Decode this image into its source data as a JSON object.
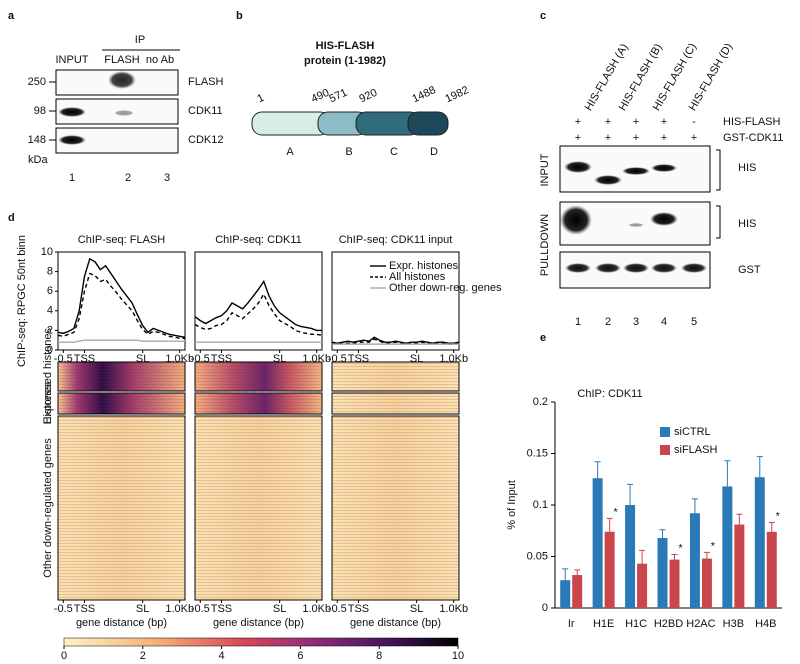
{
  "panels": {
    "a": {
      "label": "a",
      "ip_label": "IP",
      "columns": [
        "INPUT",
        "FLASH",
        "no Ab"
      ],
      "rows": [
        {
          "label": "FLASH",
          "marker": 250
        },
        {
          "label": "CDK11",
          "marker": 98
        },
        {
          "label": "CDK12",
          "marker": 148
        }
      ],
      "unit": "kDa",
      "lanes": [
        1,
        2,
        3
      ]
    },
    "b": {
      "label": "b",
      "title": "HIS-FLASH",
      "subtitle": "protein (1-1982)",
      "positions": [
        1,
        490,
        571,
        920,
        1488,
        1982
      ],
      "domains": [
        "A",
        "B",
        "C",
        "D"
      ]
    },
    "c": {
      "label": "c",
      "columns": [
        "HIS-FLASH (A)",
        "HIS-FLASH (B)",
        "HIS-FLASH (C)",
        "HIS-FLASH (D)"
      ],
      "rows": [
        {
          "label": "HIS-FLASH",
          "signs": [
            "+",
            "+",
            "+",
            "+",
            "-"
          ]
        },
        {
          "label": "GST-CDK11",
          "signs": [
            "+",
            "+",
            "+",
            "+",
            "+"
          ]
        }
      ],
      "sections": [
        "INPUT",
        "PULLDOWN"
      ],
      "blots": [
        "HIS",
        "HIS",
        "GST"
      ],
      "lanes": [
        1,
        2,
        3,
        4,
        5
      ]
    },
    "d": {
      "label": "d",
      "heatmap": {
        "row_labels": [
          "Expressed histones",
          "Histones",
          "Other down-regulated genes"
        ],
        "x_label": "gene distance (bp)"
      },
      "colorbar": {
        "lim": [
          0,
          10
        ],
        "ticks": [
          0,
          2,
          4,
          6,
          8,
          10
        ]
      }
    },
    "e": {
      "label": "e"
    }
  },
  "chart_data": [
    {
      "type": "line",
      "title": "ChIP-seq: FLASH",
      "y_label": "ChIP-seq: RPGC 50nt binn",
      "x": [
        0,
        1,
        2,
        3,
        4,
        5,
        6,
        7,
        8,
        9,
        10,
        11,
        12,
        13,
        14,
        15,
        16,
        17,
        18,
        19,
        20,
        21,
        22,
        23,
        24
      ],
      "xlim": [
        0,
        24
      ],
      "xticks": [
        {
          "value": 1,
          "label": "-0.5"
        },
        {
          "value": 5,
          "label": "TSS"
        },
        {
          "value": 16,
          "label": "SL"
        },
        {
          "value": 23,
          "label": "1.0Kb"
        }
      ],
      "ylim": [
        0,
        10
      ],
      "yticks": [
        0,
        2,
        4,
        6,
        8,
        10
      ],
      "series": [
        {
          "color": "#000000",
          "dash": "solid",
          "values": [
            1.8,
            1.7,
            1.9,
            2.2,
            4,
            7.5,
            9.3,
            9,
            8.2,
            8.6,
            7.8,
            7,
            6.2,
            5.5,
            4.8,
            3.6,
            2.5,
            1.8,
            2.2,
            2,
            1.8,
            1.6,
            1.5,
            1.4,
            1.3
          ]
        },
        {
          "color": "#000000",
          "dash": "dashed",
          "values": [
            1.5,
            1.4,
            1.6,
            1.8,
            3.2,
            6,
            7.8,
            7.6,
            7,
            7.2,
            6.5,
            5.9,
            5.2,
            4.6,
            4,
            3,
            2.1,
            1.6,
            1.9,
            1.8,
            1.6,
            1.4,
            1.3,
            1.2,
            1.2
          ]
        },
        {
          "color": "#aaaaaa",
          "dash": "solid",
          "values": [
            0.8,
            0.8,
            0.8,
            0.8,
            0.9,
            1,
            1,
            1,
            1,
            1,
            1,
            1,
            1,
            1,
            1,
            1,
            0.9,
            0.9,
            0.9,
            0.9,
            0.9,
            0.9,
            0.9,
            0.9,
            0.9
          ]
        }
      ]
    },
    {
      "type": "line",
      "title": "ChIP-seq: CDK11",
      "x": [
        0,
        1,
        2,
        3,
        4,
        5,
        6,
        7,
        8,
        9,
        10,
        11,
        12,
        13,
        14,
        15,
        16,
        17,
        18,
        19,
        20,
        21,
        22,
        23,
        24
      ],
      "xlim": [
        0,
        24
      ],
      "xticks": [
        {
          "value": 1,
          "label": "-0.5"
        },
        {
          "value": 5,
          "label": "TSS"
        },
        {
          "value": 16,
          "label": "SL"
        },
        {
          "value": 23,
          "label": "1.0Kb"
        }
      ],
      "ylim": [
        0,
        10
      ],
      "series": [
        {
          "color": "#000000",
          "dash": "solid",
          "values": [
            3.4,
            3,
            2.7,
            3,
            3.3,
            3.5,
            4,
            4.8,
            4.5,
            4.2,
            4.8,
            5.5,
            6.2,
            7,
            5.5,
            4.5,
            3.8,
            3.4,
            3,
            2.6,
            2.4,
            2.3,
            2.2,
            2,
            2
          ]
        },
        {
          "color": "#000000",
          "dash": "dashed",
          "values": [
            2.6,
            2.3,
            2.1,
            2.2,
            2.5,
            2.6,
            3,
            3.8,
            3.5,
            3.2,
            3.7,
            4.2,
            4.8,
            5.7,
            4.5,
            3.7,
            3,
            2.7,
            2.4,
            2,
            1.8,
            1.7,
            1.6,
            1.6,
            1.5
          ]
        },
        {
          "color": "#aaaaaa",
          "dash": "solid",
          "values": [
            0.8,
            0.8,
            0.8,
            0.8,
            0.8,
            0.8,
            0.8,
            0.8,
            0.8,
            0.8,
            0.8,
            0.8,
            0.8,
            0.8,
            0.8,
            0.8,
            0.8,
            0.8,
            0.8,
            0.8,
            0.8,
            0.8,
            0.8,
            0.8,
            0.8
          ]
        }
      ]
    },
    {
      "type": "line",
      "title": "ChIP-seq: CDK11 input",
      "x": [
        0,
        1,
        2,
        3,
        4,
        5,
        6,
        7,
        8,
        9,
        10,
        11,
        12,
        13,
        14,
        15,
        16,
        17,
        18,
        19,
        20,
        21,
        22,
        23,
        24
      ],
      "xlim": [
        0,
        24
      ],
      "xticks": [
        {
          "value": 1,
          "label": "-0.5"
        },
        {
          "value": 5,
          "label": "TSS"
        },
        {
          "value": 16,
          "label": "SL"
        },
        {
          "value": 23,
          "label": "1.0Kb"
        }
      ],
      "ylim": [
        0,
        10
      ],
      "legend": "upper right",
      "series": [
        {
          "name": "Expr. histones",
          "color": "#000000",
          "dash": "solid",
          "values": [
            0.8,
            0.7,
            0.8,
            0.9,
            0.8,
            0.9,
            1,
            0.9,
            1.3,
            1,
            0.8,
            0.8,
            0.9,
            0.8,
            0.7,
            0.8,
            0.8,
            0.9,
            0.8,
            0.7,
            0.8,
            0.8,
            0.7,
            0.7,
            0.8
          ]
        },
        {
          "name": "All histones",
          "color": "#000000",
          "dash": "dashed",
          "values": [
            0.7,
            0.6,
            0.7,
            0.7,
            0.7,
            0.8,
            0.8,
            0.8,
            1.1,
            0.9,
            0.7,
            0.7,
            0.8,
            0.7,
            0.6,
            0.7,
            0.7,
            0.8,
            0.7,
            0.6,
            0.7,
            0.7,
            0.6,
            0.6,
            0.7
          ]
        },
        {
          "name": "Other down-reg. genes",
          "color": "#aaaaaa",
          "dash": "solid",
          "values": [
            0.6,
            0.6,
            0.6,
            0.6,
            0.6,
            0.6,
            0.6,
            0.6,
            0.6,
            0.6,
            0.6,
            0.6,
            0.6,
            0.6,
            0.6,
            0.6,
            0.6,
            0.6,
            0.6,
            0.6,
            0.6,
            0.6,
            0.6,
            0.6,
            0.6
          ]
        }
      ]
    },
    {
      "type": "bar",
      "title": "ChIP: CDK11",
      "y_label": "% of Input",
      "categories": [
        "Ir",
        "H1E",
        "H1C",
        "H2BD",
        "H2AC",
        "H3B",
        "H4B"
      ],
      "ylim": [
        0,
        0.2
      ],
      "yticks": [
        0,
        0.05,
        0.1,
        0.15,
        0.2
      ],
      "legend": "upper right",
      "series": [
        {
          "name": "siCTRL",
          "color": "#2a7ab8",
          "values": [
            0.027,
            0.126,
            0.1,
            0.068,
            0.092,
            0.118,
            0.127
          ],
          "errors": [
            0.011,
            0.016,
            0.02,
            0.008,
            0.014,
            0.025,
            0.02
          ]
        },
        {
          "name": "siFLASH",
          "color": "#c9474b",
          "values": [
            0.032,
            0.074,
            0.043,
            0.047,
            0.048,
            0.081,
            0.074
          ],
          "errors": [
            0.005,
            0.013,
            0.013,
            0.005,
            0.006,
            0.01,
            0.009
          ],
          "significance": [
            null,
            "*",
            null,
            "*",
            "*",
            null,
            "*"
          ]
        }
      ]
    }
  ]
}
